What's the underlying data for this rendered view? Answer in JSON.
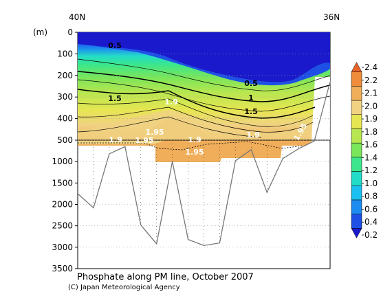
{
  "chart_data": {
    "type": "heatmap",
    "title": "Phosphate along PM line, October 2007",
    "credit": "(C) Japan Meteorological Agency",
    "x_start_label": "40N",
    "x_end_label": "36N",
    "y_unit": "(m)",
    "y_ticks": [
      0,
      100,
      200,
      300,
      400,
      500,
      1000,
      1500,
      2000,
      2500,
      3000,
      3500
    ],
    "upper_panel_ylim": [
      0,
      500
    ],
    "lower_panel_ylim": [
      500,
      3500
    ],
    "colorbar": {
      "levels": [
        0.2,
        0.4,
        0.6,
        0.8,
        1.0,
        1.2,
        1.4,
        1.6,
        1.8,
        1.9,
        2.0,
        2.1,
        2.2,
        2.4
      ],
      "labels": [
        "0.2",
        "0.4",
        "0.6",
        "0.8",
        "1.0",
        "1.2",
        "1.4",
        "1.6",
        "1.8",
        "1.9",
        "2.0",
        "2.1",
        "2.2",
        "2.4"
      ],
      "colors": [
        "#1a1acc",
        "#1e50e6",
        "#1c8cf0",
        "#1cc0f0",
        "#22dcc8",
        "#3ce68c",
        "#7ae65a",
        "#b8e650",
        "#e6e652",
        "#f0d282",
        "#f0ae5a",
        "#ee8c3c",
        "#e8642a"
      ]
    },
    "contour_labels": [
      "0.5",
      "0.5",
      "1.5",
      "1",
      "1.5",
      "1.9",
      "1.9",
      "1.9",
      "1.95",
      "1.95",
      "1.95",
      "1.9",
      "1.95"
    ],
    "bottom_depth_profile": {
      "station_index": [
        0,
        1,
        2,
        3,
        4,
        5,
        6,
        7,
        8,
        9,
        10,
        11,
        12,
        13,
        14,
        15,
        16
      ],
      "depth_m": [
        1750,
        2080,
        820,
        650,
        2480,
        2920,
        1000,
        2820,
        2960,
        2900,
        980,
        720,
        1720,
        930,
        700,
        520,
        230
      ]
    }
  }
}
